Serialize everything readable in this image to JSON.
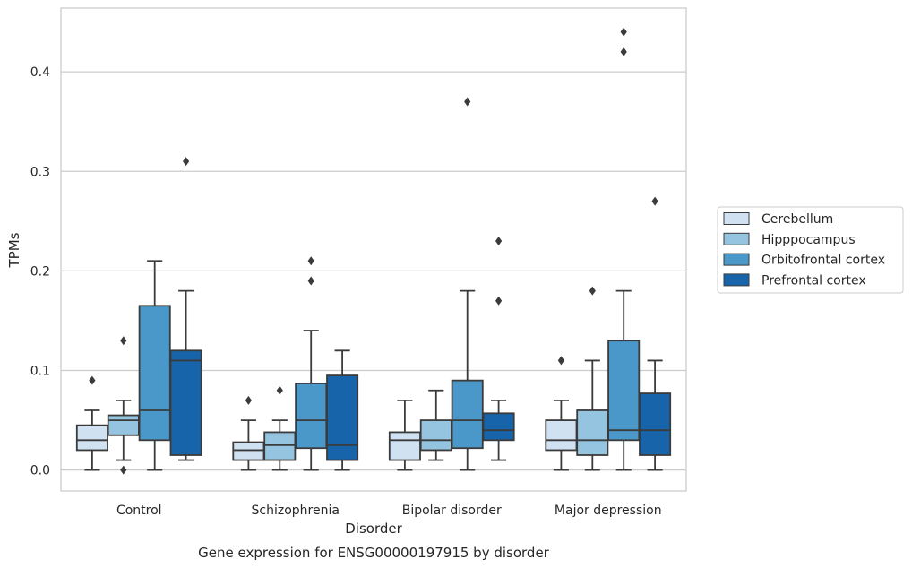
{
  "chart_data": {
    "type": "box",
    "xlabel": "Disorder",
    "ylabel": "TPMs",
    "caption": "Gene expression for ENSG00000197915 by disorder",
    "ylim": [
      -0.021,
      0.464
    ],
    "yticks": [
      0.0,
      0.1,
      0.2,
      0.3,
      0.4
    ],
    "ytick_labels": [
      "0.0",
      "0.1",
      "0.2",
      "0.3",
      "0.4"
    ],
    "grid": "horizontal",
    "legend_position": "right",
    "categories": [
      "Control",
      "Schizophrenia",
      "Bipolar disorder",
      "Major depression"
    ],
    "series": [
      {
        "name": "Cerebellum",
        "color": "#d0e1f2",
        "boxes": [
          {
            "whislo": 0.0,
            "q1": 0.02,
            "med": 0.03,
            "q3": 0.045,
            "whishi": 0.06,
            "fliers": [
              0.09
            ]
          },
          {
            "whislo": 0.0,
            "q1": 0.01,
            "med": 0.02,
            "q3": 0.028,
            "whishi": 0.05,
            "fliers": [
              0.07
            ]
          },
          {
            "whislo": 0.0,
            "q1": 0.01,
            "med": 0.03,
            "q3": 0.038,
            "whishi": 0.07,
            "fliers": []
          },
          {
            "whislo": 0.0,
            "q1": 0.02,
            "med": 0.03,
            "q3": 0.05,
            "whishi": 0.07,
            "fliers": [
              0.11
            ]
          }
        ]
      },
      {
        "name": "Hipppocampus",
        "color": "#94c4df",
        "boxes": [
          {
            "whislo": 0.01,
            "q1": 0.035,
            "med": 0.05,
            "q3": 0.055,
            "whishi": 0.07,
            "fliers": [
              0.0,
              0.13
            ]
          },
          {
            "whislo": 0.0,
            "q1": 0.01,
            "med": 0.025,
            "q3": 0.038,
            "whishi": 0.05,
            "fliers": [
              0.08
            ]
          },
          {
            "whislo": 0.01,
            "q1": 0.02,
            "med": 0.03,
            "q3": 0.05,
            "whishi": 0.08,
            "fliers": []
          },
          {
            "whislo": 0.0,
            "q1": 0.015,
            "med": 0.03,
            "q3": 0.06,
            "whishi": 0.11,
            "fliers": [
              0.18
            ]
          }
        ]
      },
      {
        "name": "Orbitofrontal cortex",
        "color": "#4a98c9",
        "boxes": [
          {
            "whislo": 0.0,
            "q1": 0.03,
            "med": 0.06,
            "q3": 0.165,
            "whishi": 0.21,
            "fliers": []
          },
          {
            "whislo": 0.0,
            "q1": 0.022,
            "med": 0.05,
            "q3": 0.087,
            "whishi": 0.14,
            "fliers": [
              0.19,
              0.21
            ]
          },
          {
            "whislo": 0.0,
            "q1": 0.022,
            "med": 0.05,
            "q3": 0.09,
            "whishi": 0.18,
            "fliers": [
              0.37
            ]
          },
          {
            "whislo": 0.0,
            "q1": 0.03,
            "med": 0.04,
            "q3": 0.13,
            "whishi": 0.18,
            "fliers": [
              0.42,
              0.44
            ]
          }
        ]
      },
      {
        "name": "Prefrontal cortex",
        "color": "#1764ab",
        "boxes": [
          {
            "whislo": 0.01,
            "q1": 0.015,
            "med": 0.11,
            "q3": 0.12,
            "whishi": 0.18,
            "fliers": [
              0.31
            ]
          },
          {
            "whislo": 0.0,
            "q1": 0.01,
            "med": 0.025,
            "q3": 0.095,
            "whishi": 0.12,
            "fliers": []
          },
          {
            "whislo": 0.01,
            "q1": 0.03,
            "med": 0.04,
            "q3": 0.057,
            "whishi": 0.07,
            "fliers": [
              0.17,
              0.23
            ]
          },
          {
            "whislo": 0.0,
            "q1": 0.015,
            "med": 0.04,
            "q3": 0.077,
            "whishi": 0.11,
            "fliers": [
              0.27
            ]
          }
        ]
      }
    ]
  },
  "colors": {
    "frame": "#cccccc",
    "grid": "#cccccc",
    "box_edge": "#3b3b3b",
    "text": "#262626"
  }
}
